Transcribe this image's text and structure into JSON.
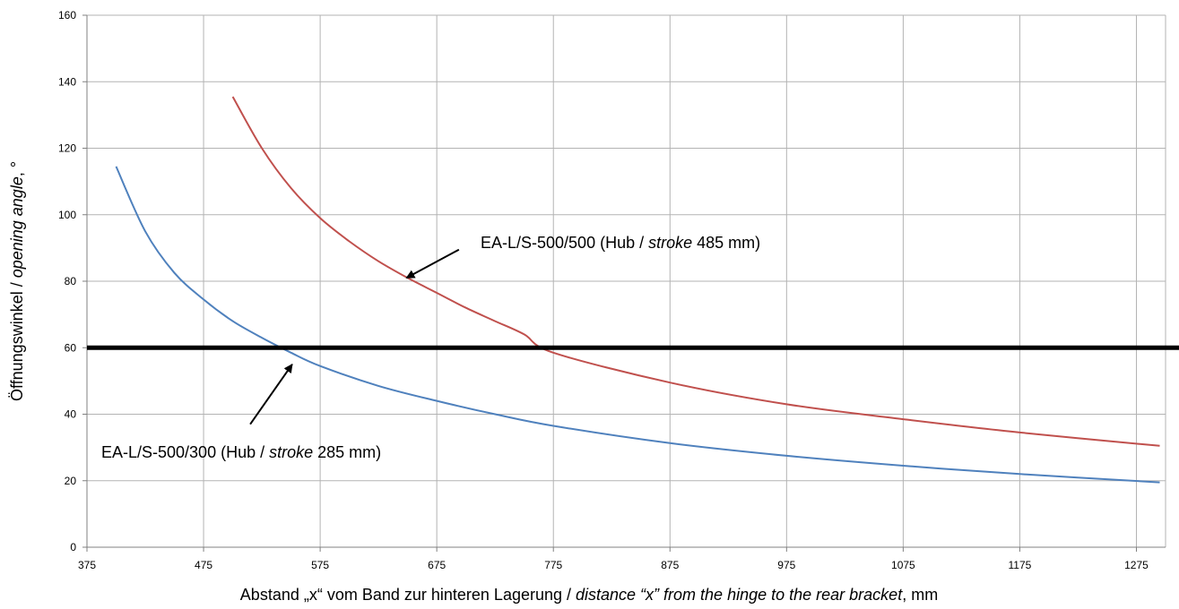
{
  "chart_data": {
    "type": "line",
    "title": "",
    "xlabel": {
      "parts": [
        {
          "text": "Abstand „x“ vom Band zur hinteren Lagerung / ",
          "italic": false
        },
        {
          "text": "distance “x” from the hinge to the rear bracket",
          "italic": true
        },
        {
          "text": ", mm",
          "italic": false
        }
      ]
    },
    "ylabel": {
      "parts": [
        {
          "text": "Öffnungswinkel / ",
          "italic": false
        },
        {
          "text": "opening angle",
          "italic": true
        },
        {
          "text": ", °",
          "italic": false
        }
      ]
    },
    "xlim": [
      375,
      1300
    ],
    "ylim": [
      0,
      160
    ],
    "x_ticks": [
      375,
      475,
      575,
      675,
      775,
      875,
      975,
      1075,
      1175,
      1275
    ],
    "y_ticks": [
      0,
      20,
      40,
      60,
      80,
      100,
      120,
      140,
      160
    ],
    "grid": true,
    "legend": "none",
    "series": [
      {
        "color": "#4f81bd",
        "points": [
          [
            400,
            114.5
          ],
          [
            425,
            95
          ],
          [
            450,
            82.5
          ],
          [
            475,
            74.5
          ],
          [
            500,
            68
          ],
          [
            525,
            63
          ],
          [
            550,
            58.5
          ],
          [
            575,
            54.5
          ],
          [
            625,
            48.5
          ],
          [
            675,
            44
          ],
          [
            725,
            40
          ],
          [
            775,
            36.5
          ],
          [
            875,
            31.3
          ],
          [
            975,
            27.5
          ],
          [
            1075,
            24.5
          ],
          [
            1175,
            22
          ],
          [
            1295,
            19.5
          ]
        ]
      },
      {
        "color": "#c0504d",
        "points": [
          [
            500,
            135.5
          ],
          [
            525,
            120
          ],
          [
            550,
            108
          ],
          [
            575,
            99
          ],
          [
            600,
            92
          ],
          [
            625,
            86
          ],
          [
            650,
            81
          ],
          [
            675,
            76.5
          ],
          [
            700,
            72
          ],
          [
            725,
            68
          ],
          [
            750,
            64
          ],
          [
            775,
            58.5
          ],
          [
            875,
            49.5
          ],
          [
            975,
            43
          ],
          [
            1075,
            38.5
          ],
          [
            1175,
            34.5
          ],
          [
            1295,
            30.5
          ]
        ]
      }
    ],
    "reference_line": {
      "y": 60,
      "color": "#000000"
    },
    "annotations": [
      {
        "parts": [
          {
            "text": "EA-L/S-500/500 (Hub / ",
            "italic": false
          },
          {
            "text": "stroke",
            "italic": true
          },
          {
            "text": " 485 mm)",
            "italic": false
          }
        ],
        "arrow_to": [
          649,
          81
        ],
        "arrow_from": [
          694,
          89.5
        ]
      },
      {
        "parts": [
          {
            "text": "EA-L/S-500/300 (Hub / ",
            "italic": false
          },
          {
            "text": "stroke",
            "italic": true
          },
          {
            "text": " 285 mm)",
            "italic": false
          }
        ],
        "arrow_to": [
          551,
          55
        ],
        "arrow_from": [
          515,
          37
        ]
      }
    ]
  }
}
